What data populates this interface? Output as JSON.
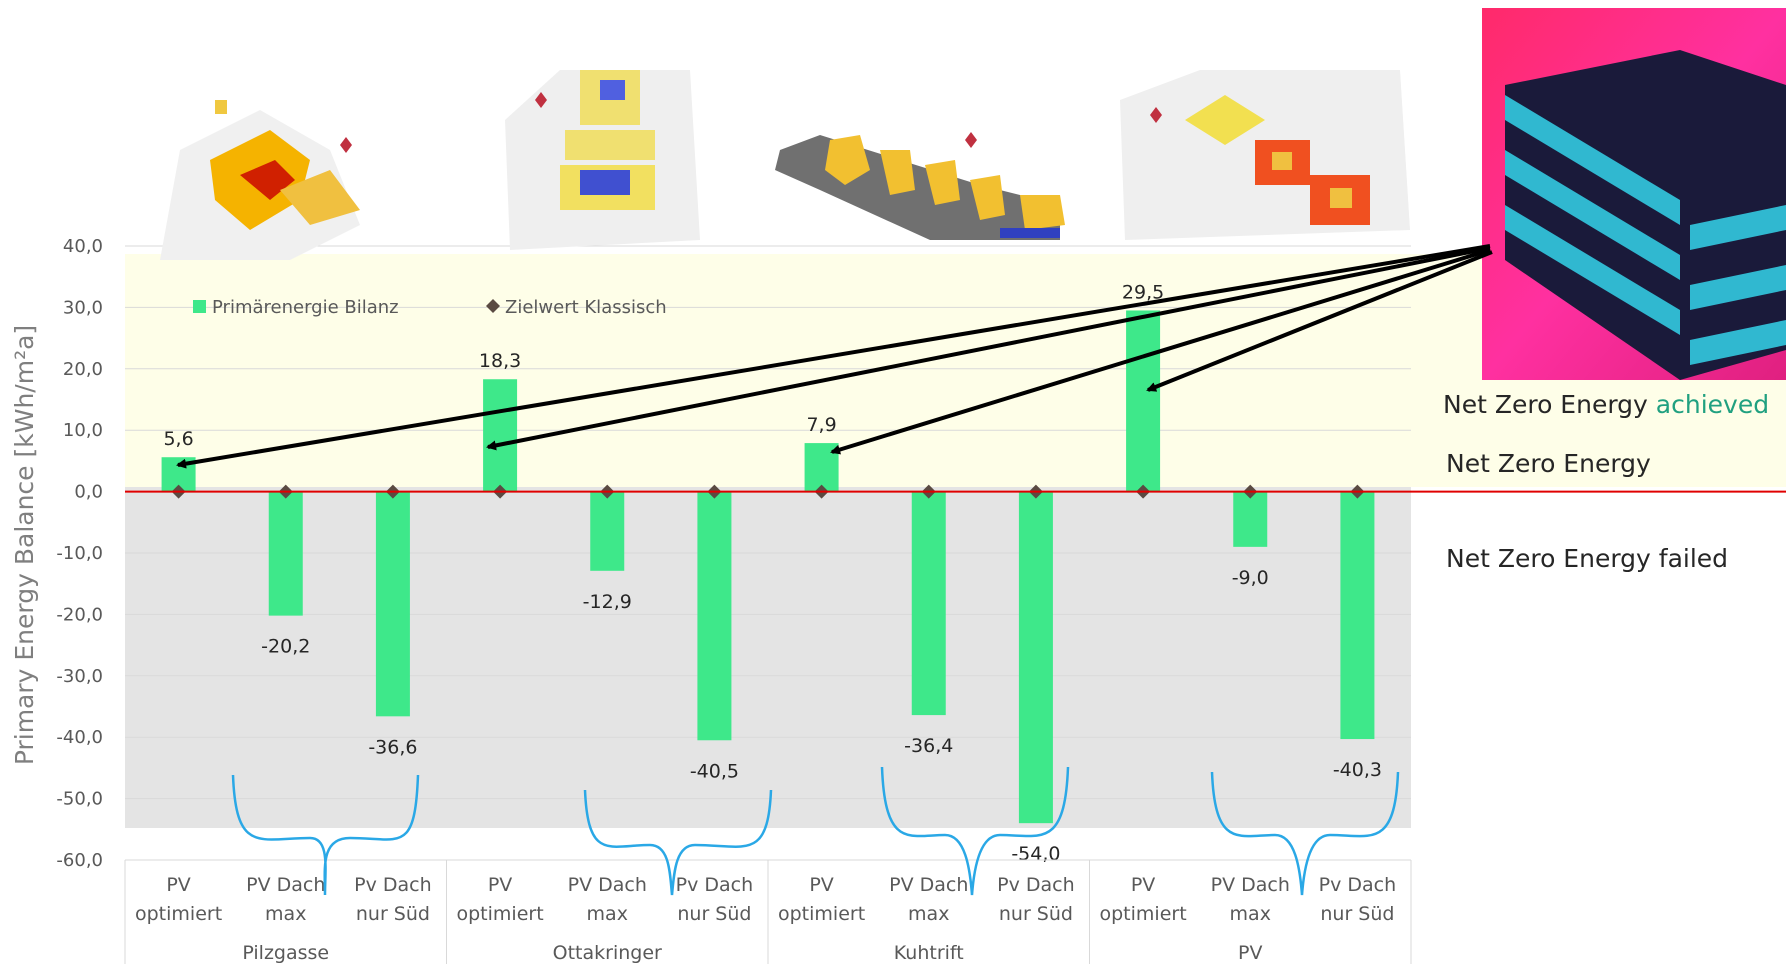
{
  "chart_data": {
    "type": "bar",
    "ylabel": "Primary Energy Balance [kWh/m²a]",
    "ylim": [
      -60,
      40
    ],
    "yticks": [
      "40,0",
      "30,0",
      "20,0",
      "10,0",
      "0,0",
      "-10,0",
      "-20,0",
      "-30,0",
      "-40,0",
      "-50,0",
      "-60,0"
    ],
    "legend": {
      "placement": "top-left"
    },
    "series": [
      {
        "name": "Primärenergie Bilanz",
        "color": "#3ee88a",
        "values": [
          5.6,
          -20.2,
          -36.6,
          18.3,
          -12.9,
          -40.5,
          7.9,
          -36.4,
          -54.0,
          29.5,
          -9.0,
          -40.3
        ]
      },
      {
        "name": "Zielwert Klassisch",
        "color": "#5a4a42",
        "marker": "diamond",
        "values": [
          0,
          0,
          0,
          0,
          0,
          0,
          0,
          0,
          0,
          0,
          0,
          0
        ]
      }
    ],
    "data_labels": [
      "5,6",
      "-20,2",
      "-36,6",
      "18,3",
      "-12,9",
      "-40,5",
      "7,9",
      "-36,4",
      "-54,0",
      "29,5",
      "-9,0",
      "-40,3"
    ],
    "groups": [
      {
        "name": "Pilzgasse",
        "categories": [
          [
            "PV",
            "optimiert"
          ],
          [
            "PV Dach",
            "max"
          ],
          [
            "Pv Dach",
            "nur Süd"
          ]
        ]
      },
      {
        "name": "Ottakringer",
        "categories": [
          [
            "PV",
            "optimiert"
          ],
          [
            "PV Dach",
            "max"
          ],
          [
            "Pv Dach",
            "nur Süd"
          ]
        ]
      },
      {
        "name": "Kuhtrift",
        "categories": [
          [
            "PV",
            "optimiert"
          ],
          [
            "PV Dach",
            "max"
          ],
          [
            "Pv Dach",
            "nur Süd"
          ]
        ]
      },
      {
        "name": "PV",
        "categories": [
          [
            "PV",
            "optimiert"
          ],
          [
            "PV Dach",
            "max"
          ],
          [
            "Pv Dach",
            "nur Süd"
          ]
        ]
      }
    ],
    "zones": {
      "achieved_prefix": "Net Zero Energy",
      "achieved_word": "achieved",
      "line": "Net Zero Energy",
      "failed": "Net Zero Energy failed"
    },
    "colors": {
      "achieved_zone": "#fefee8",
      "failed_zone": "#e4e4e4",
      "zero_line": "#e00000",
      "achieved_word": "#20a080",
      "brace": "#2aa8e6"
    }
  }
}
